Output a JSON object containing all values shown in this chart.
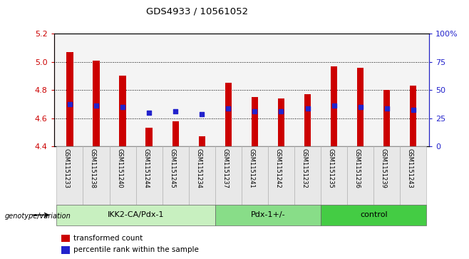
{
  "title": "GDS4933 / 10561052",
  "samples": [
    "GSM1151233",
    "GSM1151238",
    "GSM1151240",
    "GSM1151244",
    "GSM1151245",
    "GSM1151234",
    "GSM1151237",
    "GSM1151241",
    "GSM1151242",
    "GSM1151232",
    "GSM1151235",
    "GSM1151236",
    "GSM1151239",
    "GSM1151243"
  ],
  "bar_values": [
    5.07,
    5.01,
    4.9,
    4.53,
    4.58,
    4.47,
    4.85,
    4.75,
    4.74,
    4.77,
    4.97,
    4.96,
    4.8,
    4.83
  ],
  "dot_values": [
    4.7,
    4.69,
    4.68,
    4.64,
    4.65,
    4.63,
    4.67,
    4.65,
    4.65,
    4.67,
    4.69,
    4.68,
    4.67,
    4.66
  ],
  "ylim": [
    4.4,
    5.2
  ],
  "yticks_left": [
    4.4,
    4.6,
    4.8,
    5.0,
    5.2
  ],
  "yticks_right": [
    0,
    25,
    50,
    75,
    100
  ],
  "ytick_labels_right": [
    "0",
    "25",
    "50",
    "75",
    "100%"
  ],
  "bar_color": "#cc0000",
  "dot_color": "#2222cc",
  "groups": [
    {
      "label": "IKK2-CA/Pdx-1",
      "indices": [
        0,
        1,
        2,
        3,
        4,
        5
      ],
      "color": "#c8f0c0"
    },
    {
      "label": "Pdx-1+/-",
      "indices": [
        6,
        7,
        8,
        9
      ],
      "color": "#88dd88"
    },
    {
      "label": "control",
      "indices": [
        10,
        11,
        12,
        13
      ],
      "color": "#44cc44"
    }
  ],
  "group_label": "genotype/variation",
  "legend_bar_label": "transformed count",
  "legend_dot_label": "percentile rank within the sample",
  "bar_color_left_axis": "#cc0000",
  "right_axis_color": "#2222cc",
  "bar_width": 0.25,
  "dot_size": 18,
  "grid_yticks": [
    4.6,
    4.8,
    5.0
  ],
  "bg_color": "#e8e8e8"
}
